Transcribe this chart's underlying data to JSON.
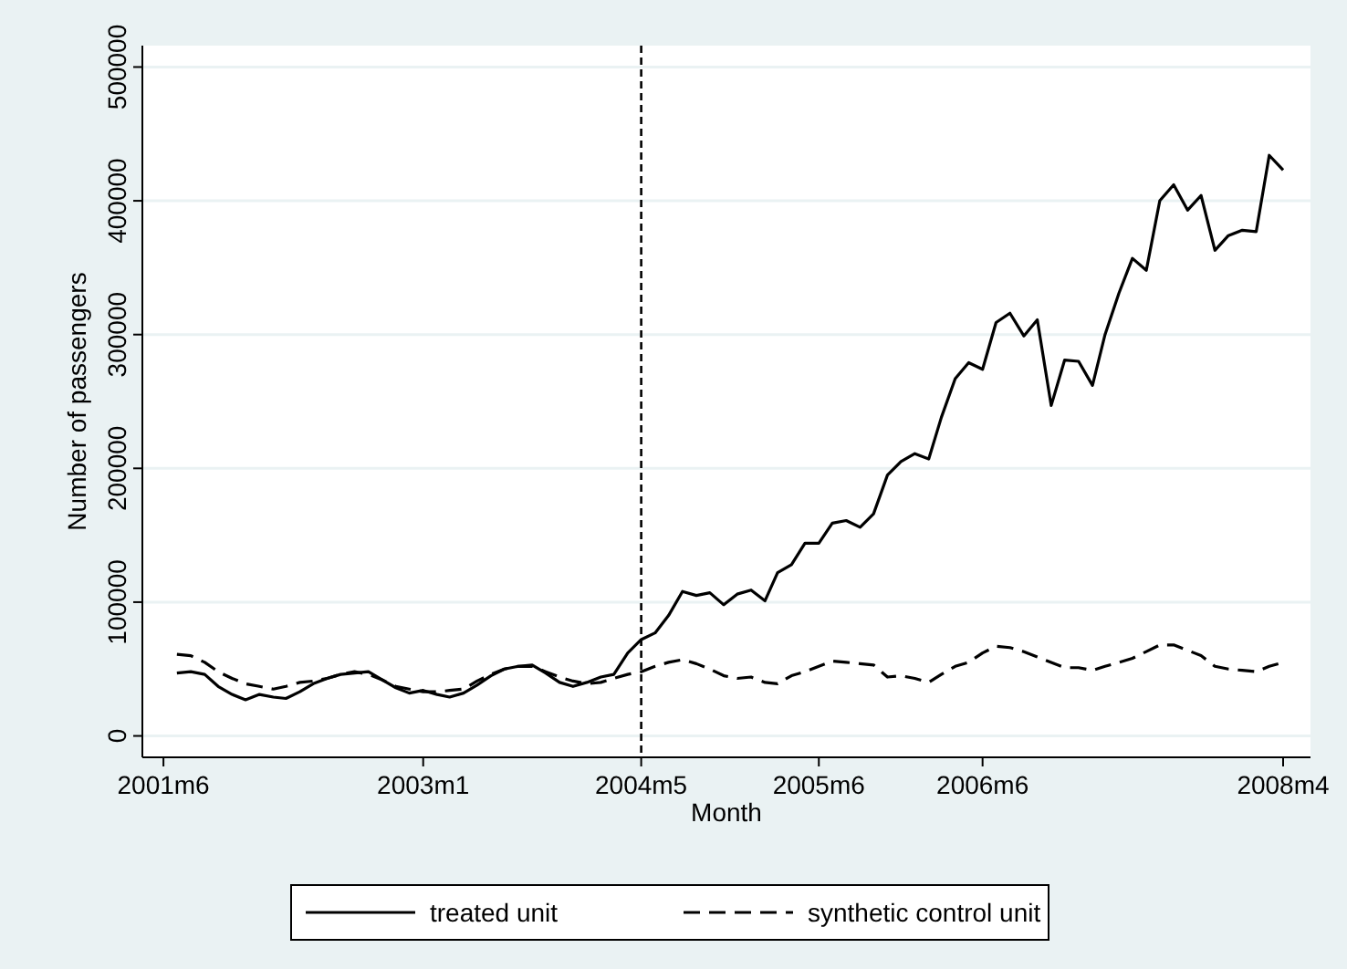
{
  "chart_data": {
    "type": "line",
    "xlabel": "Month",
    "ylabel": "Number of passengers",
    "x": [
      "2001-07",
      "2001-08",
      "2001-09",
      "2001-10",
      "2001-11",
      "2001-12",
      "2002-01",
      "2002-02",
      "2002-03",
      "2002-04",
      "2002-05",
      "2002-06",
      "2002-07",
      "2002-08",
      "2002-09",
      "2002-10",
      "2002-11",
      "2002-12",
      "2003-01",
      "2003-02",
      "2003-03",
      "2003-04",
      "2003-05",
      "2003-06",
      "2003-07",
      "2003-08",
      "2003-09",
      "2003-10",
      "2003-11",
      "2003-12",
      "2004-01",
      "2004-02",
      "2004-03",
      "2004-04",
      "2004-05",
      "2004-06",
      "2004-07",
      "2004-08",
      "2004-09",
      "2004-10",
      "2004-11",
      "2004-12",
      "2005-01",
      "2005-02",
      "2005-03",
      "2005-04",
      "2005-05",
      "2005-06",
      "2005-07",
      "2005-08",
      "2005-09",
      "2005-10",
      "2005-11",
      "2005-12",
      "2006-01",
      "2006-02",
      "2006-03",
      "2006-04",
      "2006-05",
      "2006-06",
      "2006-07",
      "2006-08",
      "2006-09",
      "2006-10",
      "2006-11",
      "2006-12",
      "2007-01",
      "2007-02",
      "2007-03",
      "2007-04",
      "2007-05",
      "2007-06",
      "2007-07",
      "2007-08",
      "2007-09",
      "2007-10",
      "2007-11",
      "2007-12",
      "2008-01",
      "2008-02",
      "2008-03",
      "2008-04"
    ],
    "series": [
      {
        "name": "treated unit",
        "color": "#000000",
        "line_style": "solid",
        "values": [
          47000,
          48000,
          46000,
          37000,
          31000,
          27000,
          31000,
          29000,
          28000,
          33000,
          39000,
          43000,
          46000,
          47000,
          48000,
          42000,
          36000,
          32000,
          34000,
          31000,
          29000,
          32000,
          38000,
          45000,
          50000,
          52000,
          53000,
          47000,
          40000,
          37000,
          40000,
          44000,
          46000,
          62000,
          72000,
          77000,
          90000,
          108000,
          105000,
          107000,
          98000,
          106000,
          109000,
          101000,
          122000,
          128000,
          144000,
          144000,
          159000,
          161000,
          156000,
          166000,
          195000,
          205000,
          211000,
          207000,
          238000,
          267000,
          279000,
          274000,
          309000,
          316000,
          299000,
          311000,
          247000,
          281000,
          280000,
          262000,
          300000,
          331000,
          357000,
          348000,
          400000,
          412000,
          393000,
          404000,
          363000,
          374000,
          378000,
          377000,
          434000,
          423000
        ]
      },
      {
        "name": "synthetic control unit",
        "color": "#000000",
        "line_style": "dashed",
        "values": [
          61000,
          60000,
          55000,
          48000,
          43000,
          39000,
          37000,
          35000,
          37000,
          40000,
          41000,
          43000,
          46000,
          48000,
          46000,
          42000,
          37000,
          35000,
          33000,
          33000,
          34000,
          35000,
          41000,
          46000,
          50000,
          52000,
          52000,
          48000,
          44000,
          41000,
          39000,
          40000,
          43000,
          46000,
          48000,
          52000,
          55000,
          57000,
          54000,
          50000,
          45000,
          43000,
          44000,
          40000,
          39000,
          45000,
          48000,
          52000,
          56000,
          55000,
          54000,
          53000,
          44000,
          45000,
          43000,
          40000,
          46000,
          52000,
          55000,
          62000,
          67000,
          66000,
          63000,
          59000,
          55000,
          51000,
          51000,
          49000,
          52000,
          55000,
          58000,
          63000,
          68000,
          68000,
          64000,
          60000,
          52000,
          50000,
          49000,
          48000,
          52000,
          55000
        ]
      }
    ],
    "xlim": [
      "2001-04-15",
      "2008-06"
    ],
    "xticks": [
      {
        "value": "2001-06",
        "label": "2001m6"
      },
      {
        "value": "2003-01",
        "label": "2003m1"
      },
      {
        "value": "2004-05",
        "label": "2004m5"
      },
      {
        "value": "2005-06",
        "label": "2005m6"
      },
      {
        "value": "2006-06",
        "label": "2006m6"
      },
      {
        "value": "2008-04",
        "label": "2008m4"
      }
    ],
    "ylim": [
      -16000,
      516000
    ],
    "yticks": [
      0,
      100000,
      200000,
      300000,
      400000,
      500000
    ],
    "ref_lines": [
      {
        "axis": "x",
        "value": "2004-05",
        "label": null,
        "color": "#000000",
        "line_style": "dashed"
      }
    ],
    "grid": "y",
    "legend": "bottom"
  }
}
